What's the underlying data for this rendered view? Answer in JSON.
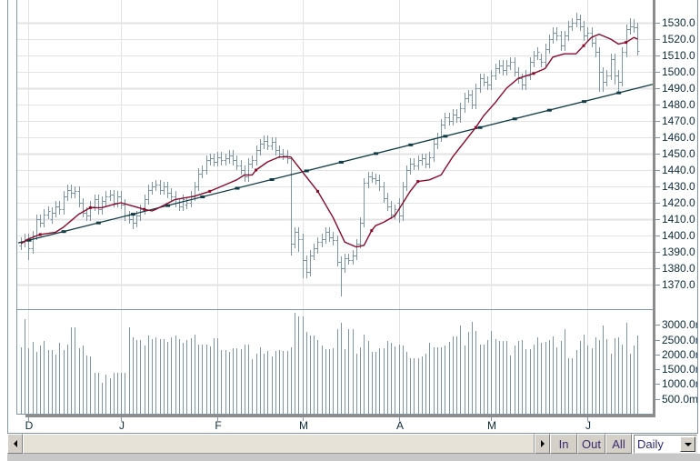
{
  "toolbar": {
    "zoom_in": "In",
    "zoom_out": "Out",
    "zoom_all": "All",
    "period_select": {
      "value": "Daily"
    }
  },
  "colors": {
    "bar": "#7b95a6",
    "moving_average": "#8b0a2a",
    "trend_line": "#0e3b45",
    "grid": "#e3e3e3",
    "frame": "#7f97a8",
    "separator": "#8c8c8c"
  },
  "chart_data": {
    "type": "ohlc",
    "title": "",
    "xlabel": "",
    "ylabel": "",
    "grid": true,
    "time_axis": {
      "labels": [
        {
          "label": "D",
          "bar": 2
        },
        {
          "label": "J",
          "bar": 26
        },
        {
          "label": "F",
          "bar": 51
        },
        {
          "label": "M",
          "bar": 73
        },
        {
          "label": "A",
          "bar": 98
        },
        {
          "label": "M",
          "bar": 122
        },
        {
          "label": "J",
          "bar": 147
        }
      ]
    },
    "price_axis": {
      "ylim": [
        1355,
        1543.9
      ],
      "ticks": [
        1530,
        1520,
        1510,
        1500,
        1490,
        1480,
        1470,
        1460,
        1450,
        1440,
        1430,
        1420,
        1410,
        1400,
        1390,
        1380,
        1370
      ],
      "tick_labels": [
        "1530.0",
        "1520.0",
        "1510.0",
        "1500.0",
        "1490.0",
        "1480.0",
        "1470.0",
        "1460.0",
        "1450.0",
        "1440.0",
        "1430.0",
        "1420.0",
        "1410.0",
        "1400.0",
        "1390.0",
        "1380.0",
        "1370.0"
      ]
    },
    "volume_axis": {
      "ylim": [
        0,
        3497
      ],
      "ticks": [
        3000,
        2500,
        2000,
        1500,
        1000,
        500
      ],
      "tick_labels": [
        "3000.0m",
        "2500.0m",
        "2000.0m",
        "1500.0m",
        "1000.0m",
        "500.0m"
      ]
    },
    "ohlc_columns": [
      "open",
      "high",
      "low",
      "close"
    ],
    "ohlc": [
      [
        1394,
        1399,
        1391,
        1396
      ],
      [
        1396,
        1401,
        1393,
        1398
      ],
      [
        1398,
        1401,
        1385,
        1392
      ],
      [
        1392,
        1403,
        1389,
        1400
      ],
      [
        1400,
        1413,
        1397,
        1410
      ],
      [
        1410,
        1413,
        1405,
        1408
      ],
      [
        1408,
        1416,
        1405,
        1413
      ],
      [
        1413,
        1418,
        1410,
        1415
      ],
      [
        1410,
        1417,
        1407,
        1414
      ],
      [
        1414,
        1421,
        1411,
        1418
      ],
      [
        1418,
        1421,
        1413,
        1416
      ],
      [
        1416,
        1427,
        1413,
        1424
      ],
      [
        1424,
        1431,
        1421,
        1428
      ],
      [
        1428,
        1431,
        1423,
        1426
      ],
      [
        1426,
        1430,
        1423,
        1427
      ],
      [
        1427,
        1430,
        1417,
        1420
      ],
      [
        1420,
        1423,
        1411,
        1414
      ],
      [
        1414,
        1417,
        1409,
        1412
      ],
      [
        1412,
        1421,
        1409,
        1418
      ],
      [
        1418,
        1425,
        1415,
        1422
      ],
      [
        1422,
        1425,
        1413,
        1416
      ],
      [
        1416,
        1424,
        1413,
        1421
      ],
      [
        1421,
        1427,
        1418,
        1424
      ],
      [
        1424,
        1428,
        1421,
        1425
      ],
      [
        1425,
        1428,
        1417,
        1420
      ],
      [
        1420,
        1427,
        1417,
        1424
      ],
      [
        1424,
        1427,
        1416,
        1419
      ],
      [
        1419,
        1422,
        1409,
        1412
      ],
      [
        1412,
        1415,
        1407,
        1410
      ],
      [
        1410,
        1413,
        1404,
        1408
      ],
      [
        1408,
        1415,
        1405,
        1412
      ],
      [
        1412,
        1419,
        1409,
        1416
      ],
      [
        1416,
        1425,
        1413,
        1422
      ],
      [
        1422,
        1431,
        1419,
        1428
      ],
      [
        1428,
        1433,
        1425,
        1430
      ],
      [
        1430,
        1434,
        1427,
        1431
      ],
      [
        1431,
        1434,
        1425,
        1428
      ],
      [
        1428,
        1433,
        1425,
        1430
      ],
      [
        1430,
        1433,
        1423,
        1426
      ],
      [
        1426,
        1429,
        1421,
        1424
      ],
      [
        1424,
        1427,
        1417,
        1420
      ],
      [
        1420,
        1423,
        1415,
        1418
      ],
      [
        1418,
        1425,
        1415,
        1422
      ],
      [
        1419,
        1423,
        1416,
        1420
      ],
      [
        1420,
        1427,
        1417,
        1424
      ],
      [
        1424,
        1433,
        1421,
        1430
      ],
      [
        1430,
        1441,
        1427,
        1438
      ],
      [
        1438,
        1443,
        1435,
        1440
      ],
      [
        1440,
        1449,
        1437,
        1446
      ],
      [
        1446,
        1450,
        1443,
        1447
      ],
      [
        1447,
        1450,
        1442,
        1445
      ],
      [
        1445,
        1451,
        1442,
        1448
      ],
      [
        1448,
        1451,
        1443,
        1446
      ],
      [
        1446,
        1450,
        1443,
        1447
      ],
      [
        1447,
        1452,
        1444,
        1449
      ],
      [
        1449,
        1452,
        1443,
        1446
      ],
      [
        1446,
        1449,
        1440,
        1443
      ],
      [
        1443,
        1446,
        1437,
        1440
      ],
      [
        1440,
        1443,
        1433,
        1436
      ],
      [
        1436,
        1447,
        1433,
        1444
      ],
      [
        1444,
        1449,
        1441,
        1446
      ],
      [
        1446,
        1455,
        1443,
        1452
      ],
      [
        1452,
        1459,
        1449,
        1456
      ],
      [
        1456,
        1461,
        1453,
        1458
      ],
      [
        1458,
        1461,
        1452,
        1455
      ],
      [
        1455,
        1460,
        1452,
        1457
      ],
      [
        1457,
        1460,
        1449,
        1452
      ],
      [
        1452,
        1455,
        1447,
        1450
      ],
      [
        1450,
        1453,
        1446,
        1449
      ],
      [
        1449,
        1452,
        1444,
        1447
      ],
      [
        1447,
        1447,
        1388,
        1395
      ],
      [
        1395,
        1405,
        1392,
        1402
      ],
      [
        1402,
        1405,
        1390,
        1398
      ],
      [
        1398,
        1401,
        1374,
        1385
      ],
      [
        1385,
        1388,
        1374,
        1378
      ],
      [
        1378,
        1391,
        1375,
        1388
      ],
      [
        1388,
        1395,
        1385,
        1392
      ],
      [
        1392,
        1399,
        1389,
        1396
      ],
      [
        1396,
        1401,
        1393,
        1398
      ],
      [
        1398,
        1405,
        1395,
        1402
      ],
      [
        1402,
        1405,
        1396,
        1399
      ],
      [
        1399,
        1402,
        1394,
        1397
      ],
      [
        1397,
        1400,
        1381,
        1384
      ],
      [
        1384,
        1387,
        1363,
        1380
      ],
      [
        1380,
        1389,
        1377,
        1386
      ],
      [
        1386,
        1389,
        1382,
        1385
      ],
      [
        1385,
        1391,
        1382,
        1388
      ],
      [
        1388,
        1398,
        1385,
        1395
      ],
      [
        1395,
        1411,
        1392,
        1408
      ],
      [
        1408,
        1435,
        1405,
        1432
      ],
      [
        1432,
        1439,
        1429,
        1436
      ],
      [
        1436,
        1439,
        1432,
        1435
      ],
      [
        1435,
        1438,
        1431,
        1434
      ],
      [
        1434,
        1437,
        1427,
        1430
      ],
      [
        1430,
        1433,
        1420,
        1423
      ],
      [
        1423,
        1426,
        1415,
        1418
      ],
      [
        1418,
        1421,
        1410,
        1413
      ],
      [
        1413,
        1419,
        1410,
        1416
      ],
      [
        1420,
        1423,
        1408,
        1412
      ],
      [
        1412,
        1433,
        1409,
        1430
      ],
      [
        1430,
        1443,
        1427,
        1440
      ],
      [
        1440,
        1447,
        1437,
        1444
      ],
      [
        1444,
        1447,
        1440,
        1443
      ],
      [
        1443,
        1449,
        1440,
        1446
      ],
      [
        1446,
        1450,
        1443,
        1447
      ],
      [
        1447,
        1450,
        1441,
        1444
      ],
      [
        1444,
        1451,
        1441,
        1448
      ],
      [
        1448,
        1459,
        1445,
        1456
      ],
      [
        1456,
        1463,
        1453,
        1460
      ],
      [
        1460,
        1471,
        1457,
        1468
      ],
      [
        1468,
        1475,
        1465,
        1472
      ],
      [
        1472,
        1475,
        1467,
        1470
      ],
      [
        1470,
        1477,
        1467,
        1474
      ],
      [
        1474,
        1477,
        1469,
        1472
      ],
      [
        1472,
        1481,
        1469,
        1478
      ],
      [
        1478,
        1487,
        1475,
        1484
      ],
      [
        1484,
        1489,
        1481,
        1486
      ],
      [
        1486,
        1489,
        1477,
        1480
      ],
      [
        1480,
        1493,
        1477,
        1490
      ],
      [
        1490,
        1499,
        1487,
        1496
      ],
      [
        1496,
        1499,
        1491,
        1494
      ],
      [
        1494,
        1497,
        1489,
        1492
      ],
      [
        1492,
        1501,
        1489,
        1498
      ],
      [
        1498,
        1505,
        1495,
        1502
      ],
      [
        1502,
        1507,
        1499,
        1504
      ],
      [
        1504,
        1507,
        1498,
        1501
      ],
      [
        1501,
        1507,
        1498,
        1504
      ],
      [
        1504,
        1509,
        1501,
        1506
      ],
      [
        1506,
        1509,
        1497,
        1500
      ],
      [
        1500,
        1503,
        1493,
        1496
      ],
      [
        1496,
        1499,
        1489,
        1492
      ],
      [
        1492,
        1501,
        1489,
        1498
      ],
      [
        1498,
        1509,
        1495,
        1506
      ],
      [
        1506,
        1513,
        1503,
        1510
      ],
      [
        1510,
        1515,
        1507,
        1512
      ],
      [
        1508,
        1511,
        1503,
        1506
      ],
      [
        1506,
        1517,
        1503,
        1514
      ],
      [
        1514,
        1523,
        1511,
        1520
      ],
      [
        1520,
        1527,
        1517,
        1524
      ],
      [
        1524,
        1527,
        1519,
        1522
      ],
      [
        1522,
        1525,
        1513,
        1516
      ],
      [
        1516,
        1525,
        1513,
        1522
      ],
      [
        1522,
        1531,
        1519,
        1528
      ],
      [
        1528,
        1533,
        1525,
        1530
      ],
      [
        1530,
        1536,
        1527,
        1532
      ],
      [
        1532,
        1535,
        1525,
        1528
      ],
      [
        1528,
        1531,
        1519,
        1522
      ],
      [
        1522,
        1527,
        1519,
        1524
      ],
      [
        1524,
        1527,
        1515,
        1518
      ],
      [
        1518,
        1521,
        1509,
        1512
      ],
      [
        1512,
        1515,
        1488,
        1500
      ],
      [
        1500,
        1503,
        1488,
        1494
      ],
      [
        1494,
        1501,
        1491,
        1498
      ],
      [
        1498,
        1511,
        1495,
        1508
      ],
      [
        1508,
        1511,
        1492,
        1498
      ],
      [
        1498,
        1501,
        1488,
        1494
      ],
      [
        1494,
        1515,
        1491,
        1512
      ],
      [
        1512,
        1529,
        1509,
        1526
      ],
      [
        1526,
        1533,
        1523,
        1528
      ],
      [
        1528,
        1532,
        1524,
        1527
      ],
      [
        1527,
        1530,
        1510,
        1513
      ]
    ],
    "volume": [
      2248,
      3199,
      2218,
      2423,
      2095,
      2300,
      2454,
      2147,
      2147,
      1994,
      2402,
      2147,
      2331,
      2914,
      2914,
      2218,
      2300,
      1963,
      1932,
      1380,
      1380,
      1043,
      1319,
      1196,
      1380,
      1380,
      1380,
      1380,
      2914,
      2576,
      2484,
      2484,
      2300,
      2638,
      2515,
      2576,
      2515,
      2515,
      2423,
      2576,
      2638,
      2515,
      2392,
      2484,
      2546,
      2668,
      2331,
      2331,
      2331,
      2270,
      2546,
      2546,
      2147,
      2147,
      2086,
      2208,
      2208,
      2178,
      2331,
      2331,
      1840,
      2024,
      2239,
      2024,
      2116,
      1932,
      2116,
      2147,
      2116,
      2116,
      2239,
      3404,
      3282,
      3282,
      2760,
      2638,
      2638,
      2484,
      2300,
      2178,
      2178,
      2208,
      2852,
      3067,
      2178,
      2852,
      2852,
      2024,
      2239,
      2668,
      2454,
      2086,
      2086,
      2208,
      2208,
      2454,
      2392,
      2270,
      2331,
      2300,
      2086,
      1871,
      1871,
      1871,
      1932,
      2024,
      2392,
      2239,
      2239,
      2239,
      2300,
      2423,
      2607,
      2607,
      2975,
      2300,
      2760,
      3098,
      2791,
      2331,
      2331,
      2484,
      2791,
      2515,
      2454,
      2454,
      2454,
      1963,
      2300,
      2454,
      2484,
      2178,
      2178,
      2331,
      2576,
      2392,
      2423,
      2484,
      2607,
      2239,
      2454,
      2852,
      1871,
      1871,
      2147,
      2454,
      2668,
      2300,
      2208,
      2576,
      2484,
      2975,
      2515,
      2024,
      2546,
      2576,
      2331,
      3067,
      2024,
      2300,
      2638
    ],
    "moving_average": [
      [
        0,
        1395
      ],
      [
        2,
        1398
      ],
      [
        5,
        1400.6
      ],
      [
        9,
        1402
      ],
      [
        11,
        1405
      ],
      [
        13,
        1409
      ],
      [
        15,
        1413
      ],
      [
        18,
        1417
      ],
      [
        21,
        1417
      ],
      [
        24,
        1419
      ],
      [
        26,
        1420
      ],
      [
        29,
        1418
      ],
      [
        32,
        1416
      ],
      [
        34,
        1415
      ],
      [
        35,
        1416
      ],
      [
        40,
        1422
      ],
      [
        45,
        1424
      ],
      [
        49,
        1427
      ],
      [
        54,
        1432
      ],
      [
        56,
        1434
      ],
      [
        58,
        1437
      ],
      [
        60,
        1437
      ],
      [
        61,
        1440
      ],
      [
        64,
        1445
      ],
      [
        67,
        1448
      ],
      [
        70,
        1448
      ],
      [
        73,
        1439
      ],
      [
        77,
        1427
      ],
      [
        81,
        1411
      ],
      [
        84,
        1396
      ],
      [
        87,
        1393
      ],
      [
        89,
        1394
      ],
      [
        91,
        1403
      ],
      [
        92,
        1406
      ],
      [
        94,
        1408
      ],
      [
        97,
        1412
      ],
      [
        101,
        1427
      ],
      [
        103,
        1433
      ],
      [
        106,
        1434
      ],
      [
        109,
        1437
      ],
      [
        112,
        1448
      ],
      [
        115,
        1457
      ],
      [
        118,
        1466
      ],
      [
        120,
        1473
      ],
      [
        123,
        1481
      ],
      [
        126,
        1490
      ],
      [
        129,
        1496
      ],
      [
        133,
        1499
      ],
      [
        136,
        1502
      ],
      [
        138,
        1509
      ],
      [
        141,
        1511
      ],
      [
        144,
        1511
      ],
      [
        146,
        1516
      ],
      [
        148,
        1521
      ],
      [
        150,
        1523
      ],
      [
        153,
        1520
      ],
      [
        155,
        1517
      ],
      [
        157,
        1518
      ],
      [
        159,
        1521
      ],
      [
        160,
        1520
      ]
    ],
    "trend_line": [
      [
        -0.7,
        1395.5
      ],
      [
        163.9,
        1492.4
      ]
    ]
  }
}
